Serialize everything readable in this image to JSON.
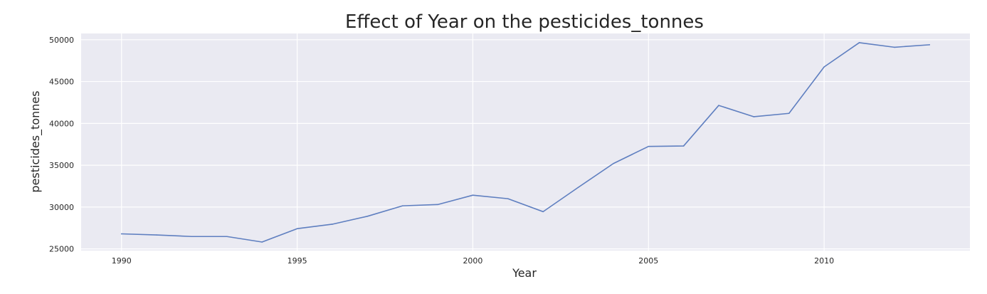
{
  "chart_data": {
    "type": "line",
    "title": "Effect of Year on the pesticides_tonnes",
    "xlabel": "Year",
    "ylabel": "pesticides_tonnes",
    "x": [
      1990,
      1991,
      1992,
      1993,
      1994,
      1995,
      1996,
      1997,
      1998,
      1999,
      2000,
      2001,
      2002,
      2003,
      2004,
      2005,
      2006,
      2007,
      2008,
      2009,
      2010,
      2011,
      2012,
      2013
    ],
    "series": [
      {
        "values": [
          26800,
          26670,
          26480,
          26480,
          25820,
          27420,
          27950,
          28900,
          30150,
          30300,
          31420,
          31000,
          29450,
          32350,
          35200,
          37250,
          37300,
          42150,
          40800,
          41200,
          46750,
          49650,
          49100,
          49400
        ]
      }
    ],
    "xlim": [
      1988.85,
      2014.15
    ],
    "ylim": [
      24800,
      50750
    ],
    "x_ticks": [
      1990,
      1995,
      2000,
      2005,
      2010
    ],
    "y_ticks": [
      25000,
      30000,
      35000,
      40000,
      45000,
      50000
    ],
    "grid": true,
    "colors": {
      "background": "#eaeaf2",
      "grid": "#ffffff",
      "line": "#5f7fc0",
      "text": "#262626"
    }
  }
}
